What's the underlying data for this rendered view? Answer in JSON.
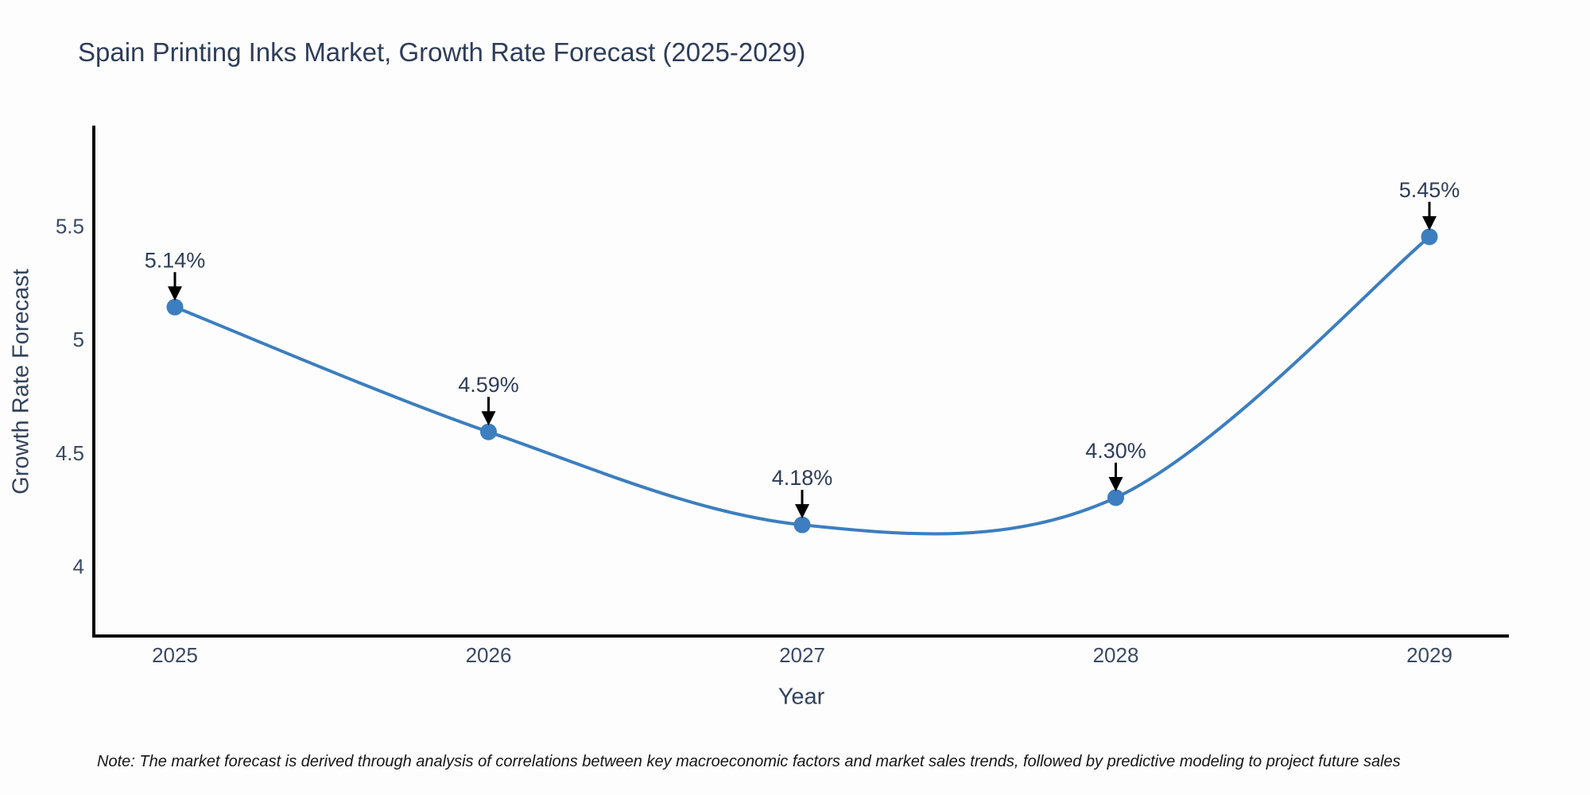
{
  "note": "Note: The market forecast is derived through analysis of correlations between key macroeconomic factors and market sales trends, followed by predictive modeling to project future sales",
  "chart_data": {
    "type": "line",
    "title": "Spain Printing Inks Market, Growth Rate Forecast (2025-2029)",
    "xlabel": "Year",
    "ylabel": "Growth Rate Forecast",
    "categories": [
      "2025",
      "2026",
      "2027",
      "2028",
      "2029"
    ],
    "series": [
      {
        "name": "Growth Rate Forecast",
        "values": [
          5.14,
          4.59,
          4.18,
          4.3,
          5.45
        ]
      }
    ],
    "point_labels": [
      "5.14%",
      "4.59%",
      "4.18%",
      "4.30%",
      "5.45%"
    ],
    "yticks": [
      4,
      4.5,
      5,
      5.5
    ],
    "ylim": [
      3.69,
      5.94
    ],
    "line_shape": "spline",
    "grid": false,
    "legend": "none",
    "annotations": "value labels with down arrows above each point",
    "colors": {
      "line": "#3c7ebf",
      "marker": "#3c7ebf",
      "label_text": "#2e3d59",
      "tick_text": "#3a4a63",
      "axis": "#0b0b0b",
      "arrow": "#000000",
      "background": "#fdfdfd"
    }
  }
}
